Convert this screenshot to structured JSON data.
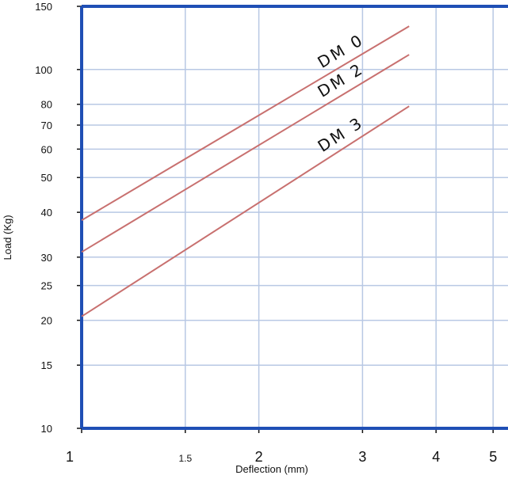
{
  "chart_data": {
    "type": "line",
    "title": "",
    "xlabel": "Deflection (mm)",
    "ylabel": "Load (Kg)",
    "x_scale": "log",
    "y_scale": "log",
    "xlim": [
      1,
      5.3
    ],
    "ylim": [
      10,
      150
    ],
    "grid": true,
    "legend": "labels-on-lines",
    "x_ticks": [
      {
        "value": 1,
        "label": "1",
        "major": true
      },
      {
        "value": 1.5,
        "label": "1.5",
        "major": false
      },
      {
        "value": 2,
        "label": "2",
        "major": true
      },
      {
        "value": 3,
        "label": "3",
        "major": true
      },
      {
        "value": 4,
        "label": "4",
        "major": true
      },
      {
        "value": 5,
        "label": "5",
        "major": true
      }
    ],
    "y_ticks": [
      {
        "value": 10,
        "label": "10"
      },
      {
        "value": 15,
        "label": "15"
      },
      {
        "value": 20,
        "label": "20"
      },
      {
        "value": 25,
        "label": "25"
      },
      {
        "value": 30,
        "label": "30"
      },
      {
        "value": 40,
        "label": "40"
      },
      {
        "value": 50,
        "label": "50"
      },
      {
        "value": 60,
        "label": "60"
      },
      {
        "value": 70,
        "label": "70"
      },
      {
        "value": 80,
        "label": "80"
      },
      {
        "value": 100,
        "label": "100"
      },
      {
        "value": 150,
        "label": "150"
      }
    ],
    "series": [
      {
        "name": "DM 0",
        "x": [
          1,
          3.6
        ],
        "y": [
          38,
          132
        ]
      },
      {
        "name": "DM 2",
        "x": [
          1,
          3.6
        ],
        "y": [
          31,
          110
        ]
      },
      {
        "name": "DM 3",
        "x": [
          1,
          3.6
        ],
        "y": [
          20.5,
          79
        ]
      }
    ],
    "colors": {
      "frame": "#1f4fb5",
      "grid": "#b8c8e4",
      "line": "#c8706f",
      "text": "#111111"
    }
  }
}
